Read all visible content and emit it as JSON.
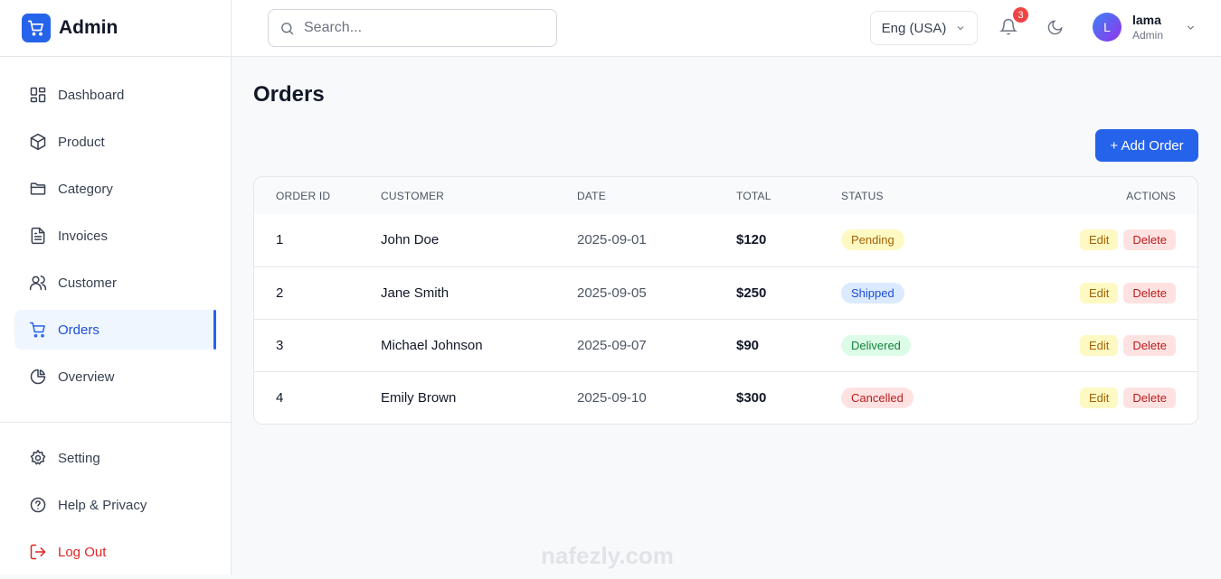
{
  "brand": {
    "name": "Admin",
    "color": "#2563eb"
  },
  "sidebar": {
    "items": [
      {
        "label": "Dashboard",
        "icon": "grid-icon"
      },
      {
        "label": "Product",
        "icon": "box-icon"
      },
      {
        "label": "Category",
        "icon": "folder-icon"
      },
      {
        "label": "Invoices",
        "icon": "file-icon"
      },
      {
        "label": "Customer",
        "icon": "users-icon"
      },
      {
        "label": "Orders",
        "icon": "cart-icon",
        "active": true
      },
      {
        "label": "Overview",
        "icon": "pie-chart-icon"
      }
    ],
    "bottom": [
      {
        "label": "Setting",
        "icon": "gear-icon"
      },
      {
        "label": "Help & Privacy",
        "icon": "help-icon"
      },
      {
        "label": "Log Out",
        "icon": "logout-icon"
      }
    ]
  },
  "header": {
    "search_placeholder": "Search...",
    "language": "Eng (USA)",
    "notifications": "3",
    "user": {
      "initial": "L",
      "name": "lama",
      "role": "Admin"
    }
  },
  "main": {
    "title": "Orders",
    "add_button": "+ Add Order",
    "columns": [
      "Order ID",
      "Customer",
      "Date",
      "Total",
      "Status",
      "Actions"
    ],
    "rows": [
      {
        "id": "1",
        "customer": "John Doe",
        "date": "2025-09-01",
        "total": "$120",
        "status": "Pending",
        "status_bg": "#fef9c3",
        "status_fg": "#a16207"
      },
      {
        "id": "2",
        "customer": "Jane Smith",
        "date": "2025-09-05",
        "total": "$250",
        "status": "Shipped",
        "status_bg": "#dbeafe",
        "status_fg": "#1d4ed8"
      },
      {
        "id": "3",
        "customer": "Michael Johnson",
        "date": "2025-09-07",
        "total": "$90",
        "status": "Delivered",
        "status_bg": "#dcfce7",
        "status_fg": "#15803d"
      },
      {
        "id": "4",
        "customer": "Emily Brown",
        "date": "2025-09-10",
        "total": "$300",
        "status": "Cancelled",
        "status_bg": "#fee2e2",
        "status_fg": "#b91c1c"
      }
    ],
    "edit_label": "Edit",
    "delete_label": "Delete"
  },
  "watermark": "nafezly.com"
}
